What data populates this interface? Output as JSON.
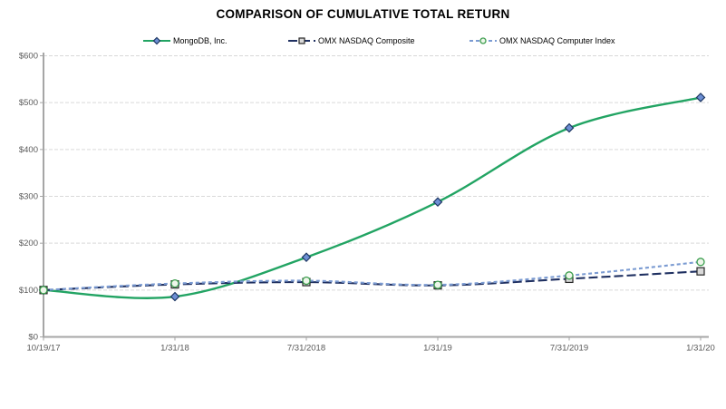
{
  "title": "COMPARISON OF CUMULATIVE TOTAL RETURN",
  "chart_data": {
    "type": "line",
    "title": "COMPARISON OF CUMULATIVE TOTAL RETURN",
    "categories": [
      "10/19/17",
      "1/31/18",
      "7/31/2018",
      "1/31/19",
      "7/31/2019",
      "1/31/20"
    ],
    "series": [
      {
        "name": "MongoDB, Inc.",
        "values": [
          100,
          86,
          170,
          288,
          446,
          511
        ],
        "line_color": "#22a463",
        "line_style": "solid",
        "marker": "diamond",
        "marker_fill": "#6d8fd4",
        "marker_stroke": "#1f3864"
      },
      {
        "name": "OMX NASDAQ Composite",
        "values": [
          100,
          112,
          117,
          110,
          124,
          140
        ],
        "line_color": "#1f3061",
        "line_style": "long-dash",
        "marker": "square",
        "marker_fill": "#d9d9d9",
        "marker_stroke": "#262626"
      },
      {
        "name": "OMX NASDAQ Computer Index",
        "values": [
          100,
          114,
          120,
          111,
          131,
          160
        ],
        "line_color": "#7b9bd2",
        "line_style": "short-dash",
        "marker": "circle",
        "marker_fill": "#eef6ea",
        "marker_stroke": "#3c9e4e"
      }
    ],
    "ylim": [
      0,
      600
    ],
    "ytick_step": 100,
    "ytick_labels": [
      "$0",
      "$100",
      "$200",
      "$300",
      "$400",
      "$500",
      "$600"
    ],
    "xlabel": "",
    "ylabel": "",
    "grid": "horizontal-dashed",
    "legend_position": "top"
  },
  "style": {
    "axis_color": "#a6a6a6",
    "grid_color": "#d9d9d9",
    "tick_text_color": "#595959",
    "background": "#ffffff"
  }
}
